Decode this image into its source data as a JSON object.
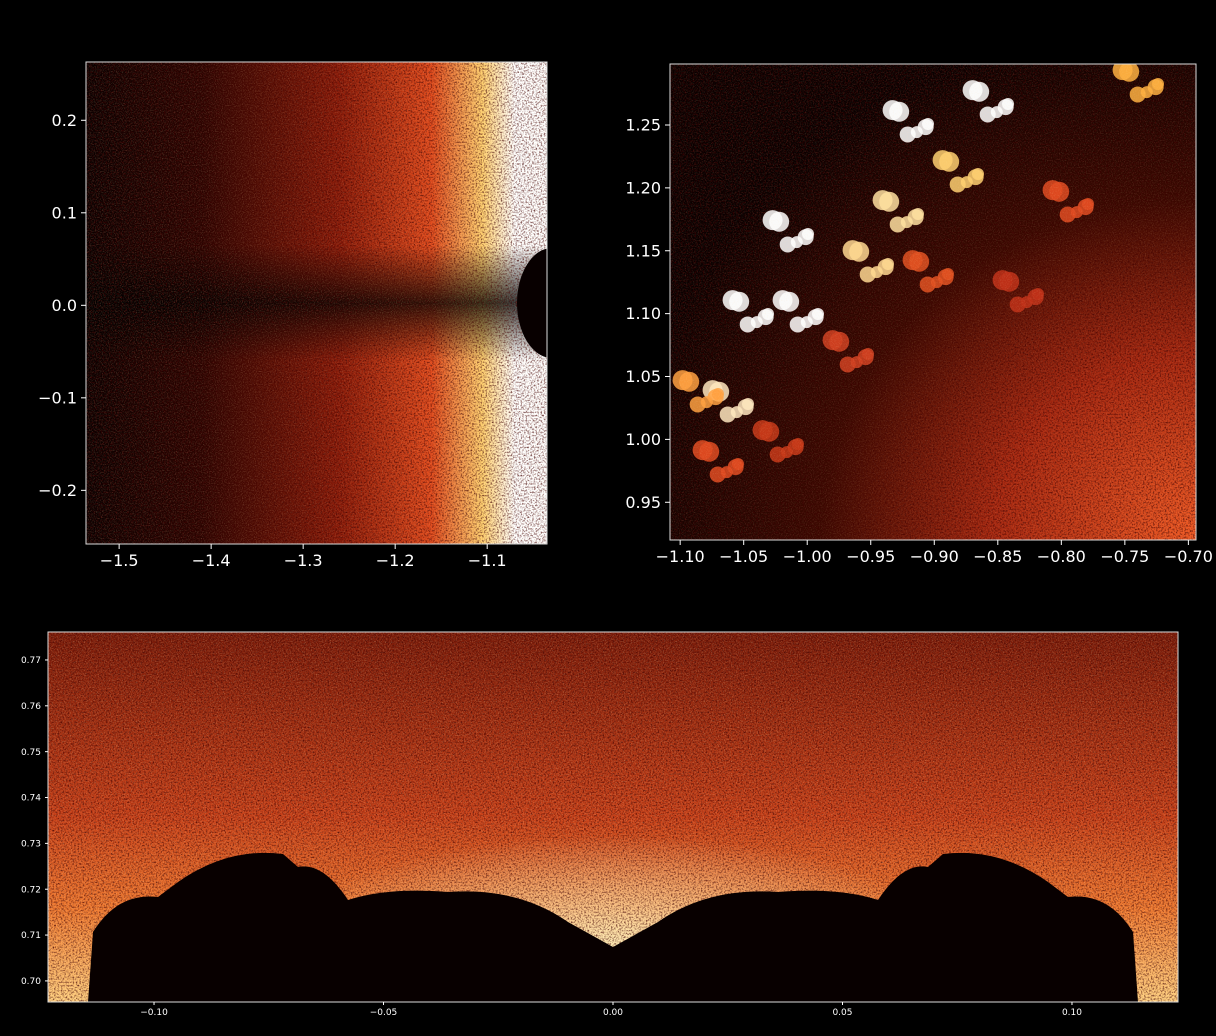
{
  "chart_data": [
    {
      "type": "image",
      "xlim": [
        -1.536,
        -1.035
      ],
      "ylim": [
        -0.258,
        0.263
      ],
      "xticks": [
        {
          "value": -1.5,
          "label": "−1.5"
        },
        {
          "value": -1.4,
          "label": "−1.4"
        },
        {
          "value": -1.3,
          "label": "−1.3"
        },
        {
          "value": -1.2,
          "label": "−1.2"
        },
        {
          "value": -1.1,
          "label": "−1.1"
        }
      ],
      "yticks": [
        {
          "value": -0.2,
          "label": "−0.2"
        },
        {
          "value": -0.1,
          "label": "−0.1"
        },
        {
          "value": 0,
          "label": "0.0"
        },
        0.1,
        0.2
      ]
    },
    {
      "type": "image",
      "xlim": [
        -1.108,
        -0.694
      ],
      "ylim": [
        0.92,
        1.2985
      ],
      "xticks": [
        {
          "value": -1.1,
          "label": "−1.10"
        },
        {
          "value": -1.05,
          "label": "−1.05"
        },
        {
          "value": -1.0,
          "label": "−1.00"
        },
        {
          "value": -0.95,
          "label": "−0.95"
        },
        {
          "value": -0.9,
          "label": "−0.90"
        },
        {
          "value": -0.85,
          "label": "−0.85"
        },
        {
          "value": -0.8,
          "label": "−0.80"
        },
        {
          "value": -0.75,
          "label": "−0.75"
        },
        {
          "value": -0.7,
          "label": "−0.70"
        }
      ],
      "yticks": [
        0.95,
        {
          "value": 1.0,
          "label": "1.00"
        },
        1.05,
        {
          "value": 1.1,
          "label": "1.10"
        },
        1.15,
        {
          "value": 1.2,
          "label": "1.20"
        },
        1.25
      ]
    },
    {
      "type": "image",
      "xlim": [
        -0.1231,
        0.1231
      ],
      "ylim": [
        0.6954,
        0.7761
      ],
      "xticks": [
        {
          "value": -0.1,
          "label": "−0.10"
        },
        {
          "value": -0.05,
          "label": "−0.05"
        },
        {
          "value": 0,
          "label": "0.00"
        },
        0.05,
        {
          "value": 0.1,
          "label": "0.10"
        }
      ],
      "yticks": [
        {
          "value": 0.7,
          "label": "0.70"
        },
        0.71,
        0.72,
        0.73,
        0.74,
        0.75,
        0.76,
        0.77
      ]
    }
  ]
}
